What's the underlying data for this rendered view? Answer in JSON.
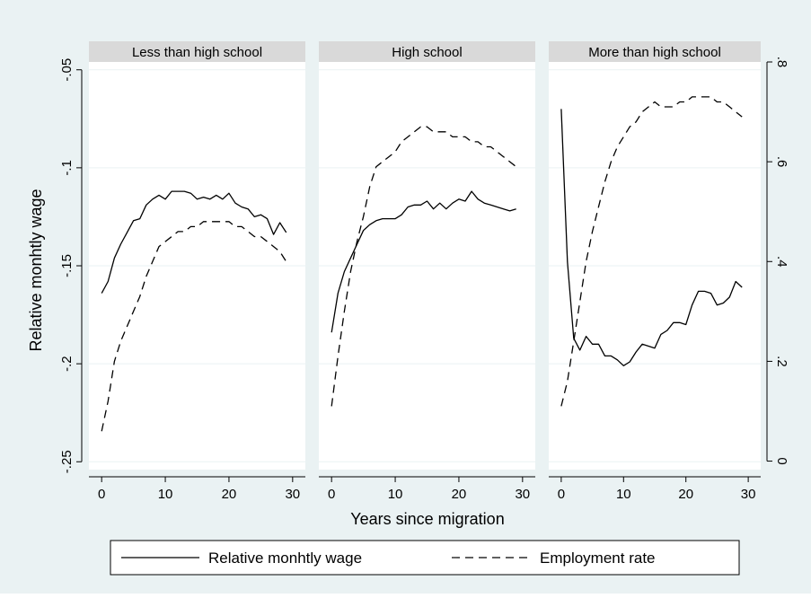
{
  "chart_data": {
    "type": "line",
    "panels": [
      {
        "title": "Less than high school",
        "x": [
          0,
          1,
          2,
          3,
          4,
          5,
          6,
          7,
          8,
          9,
          10,
          11,
          12,
          13,
          14,
          15,
          16,
          17,
          18,
          19,
          20,
          21,
          22,
          23,
          24,
          25,
          26,
          27,
          28,
          29
        ],
        "wage": [
          -0.164,
          -0.158,
          -0.146,
          -0.139,
          -0.133,
          -0.127,
          -0.126,
          -0.119,
          -0.116,
          -0.114,
          -0.116,
          -0.112,
          -0.112,
          -0.112,
          -0.113,
          -0.116,
          -0.115,
          -0.116,
          -0.114,
          -0.116,
          -0.113,
          -0.118,
          -0.12,
          -0.121,
          -0.125,
          -0.124,
          -0.126,
          -0.134,
          -0.128,
          -0.133
        ],
        "employment": [
          0.06,
          0.12,
          0.2,
          0.24,
          0.27,
          0.3,
          0.33,
          0.37,
          0.4,
          0.43,
          0.44,
          0.45,
          0.46,
          0.46,
          0.47,
          0.47,
          0.48,
          0.48,
          0.48,
          0.48,
          0.48,
          0.47,
          0.47,
          0.46,
          0.45,
          0.45,
          0.44,
          0.43,
          0.42,
          0.4
        ]
      },
      {
        "title": "High school",
        "x": [
          0,
          1,
          2,
          3,
          4,
          5,
          6,
          7,
          8,
          9,
          10,
          11,
          12,
          13,
          14,
          15,
          16,
          17,
          18,
          19,
          20,
          21,
          22,
          23,
          24,
          25,
          26,
          27,
          28,
          29
        ],
        "wage": [
          -0.184,
          -0.164,
          -0.153,
          -0.146,
          -0.139,
          -0.132,
          -0.129,
          -0.127,
          -0.126,
          -0.126,
          -0.126,
          -0.124,
          -0.12,
          -0.119,
          -0.119,
          -0.117,
          -0.121,
          -0.118,
          -0.121,
          -0.118,
          -0.116,
          -0.117,
          -0.112,
          -0.116,
          -0.118,
          -0.119,
          -0.12,
          -0.121,
          -0.122,
          -0.121
        ],
        "employment": [
          0.11,
          0.21,
          0.3,
          0.38,
          0.44,
          0.49,
          0.55,
          0.59,
          0.6,
          0.61,
          0.62,
          0.64,
          0.65,
          0.66,
          0.67,
          0.67,
          0.66,
          0.66,
          0.66,
          0.65,
          0.65,
          0.65,
          0.64,
          0.64,
          0.63,
          0.63,
          0.62,
          0.61,
          0.6,
          0.59
        ]
      },
      {
        "title": "More than high school",
        "x": [
          0,
          1,
          2,
          3,
          4,
          5,
          6,
          7,
          8,
          9,
          10,
          11,
          12,
          13,
          14,
          15,
          16,
          17,
          18,
          19,
          20,
          21,
          22,
          23,
          24,
          25,
          26,
          27,
          28,
          29
        ],
        "wage": [
          -0.07,
          -0.148,
          -0.187,
          -0.193,
          -0.186,
          -0.19,
          -0.19,
          -0.196,
          -0.196,
          -0.198,
          -0.201,
          -0.199,
          -0.194,
          -0.19,
          -0.191,
          -0.192,
          -0.185,
          -0.183,
          -0.179,
          -0.179,
          -0.18,
          -0.17,
          -0.163,
          -0.163,
          -0.164,
          -0.17,
          -0.169,
          -0.166,
          -0.158,
          -0.161
        ],
        "employment": [
          0.11,
          0.16,
          0.24,
          0.32,
          0.4,
          0.46,
          0.51,
          0.56,
          0.6,
          0.63,
          0.65,
          0.67,
          0.68,
          0.7,
          0.71,
          0.72,
          0.71,
          0.71,
          0.71,
          0.72,
          0.72,
          0.73,
          0.73,
          0.73,
          0.73,
          0.72,
          0.72,
          0.71,
          0.7,
          0.69
        ]
      }
    ],
    "xlabel": "Years since migration",
    "ylabel": "Relative monhtly wage",
    "xlim": [
      -2,
      32
    ],
    "xticks": [
      0,
      10,
      20,
      30
    ],
    "ylim_left": [
      -0.254,
      -0.046
    ],
    "yticks_left": [
      -0.05,
      -0.1,
      -0.15,
      -0.2,
      -0.25
    ],
    "ytick_labels_left": [
      "-.05",
      "-.1",
      "-.15",
      "-.2",
      "-.25"
    ],
    "ylim_right": [
      -0.017,
      0.8
    ],
    "yticks_right": [
      0,
      0.2,
      0.4,
      0.6,
      0.8
    ],
    "ytick_labels_right": [
      "0",
      ".2",
      ".4",
      ".6",
      ".8"
    ],
    "legend": {
      "position": "bottom",
      "entries": [
        {
          "label": "Relative monhtly wage",
          "style": "solid"
        },
        {
          "label": "Employment rate",
          "style": "dashed"
        }
      ]
    },
    "grid": true,
    "colors": {
      "background": "#eaf2f3",
      "header": "#d9d9d9",
      "grid": "#eaf2f3",
      "line": "#000000"
    }
  }
}
